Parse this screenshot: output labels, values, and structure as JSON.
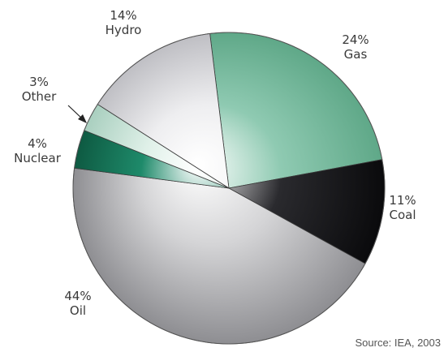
{
  "chart_data": {
    "type": "pie",
    "title": "",
    "source": "Source: IEA, 2003",
    "start_angle_deg": -97,
    "slices": [
      {
        "name": "Gas",
        "value": 24,
        "label": "24%",
        "sublabel": "Gas",
        "color": "#8fcab2",
        "shade": "#5fa888"
      },
      {
        "name": "Coal",
        "value": 11,
        "label": "11%",
        "sublabel": "Coal",
        "color": "#2a2a2e",
        "shade": "#0a0a0c"
      },
      {
        "name": "Oil",
        "value": 44,
        "label": "44%",
        "sublabel": "Oil",
        "color": "#d4d4d6",
        "shade": "#8e8e92"
      },
      {
        "name": "Nuclear",
        "value": 4,
        "label": "4%",
        "sublabel": "Nuclear",
        "color": "#1e8a6a",
        "shade": "#0e5a42"
      },
      {
        "name": "Other",
        "value": 3,
        "label": "3%",
        "sublabel": "Other",
        "color": "#dff0e8",
        "shade": "#a9cfbf"
      },
      {
        "name": "Hydro",
        "value": 14,
        "label": "14%",
        "sublabel": "Hydro",
        "color": "#eeeef0",
        "shade": "#bfbfc4"
      }
    ]
  }
}
